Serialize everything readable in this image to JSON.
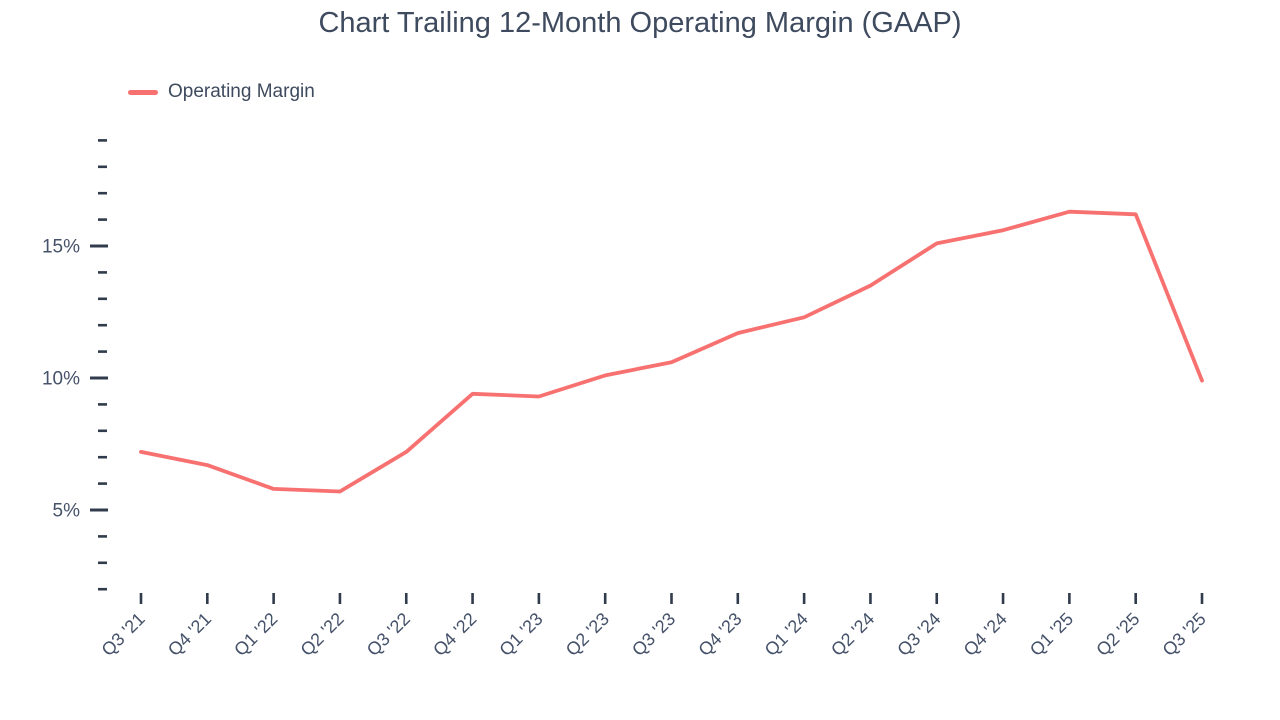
{
  "title": "Chart Trailing 12-Month Operating Margin (GAAP)",
  "legend": {
    "items": [
      {
        "label": "Operating Margin",
        "color": "#f87171"
      }
    ],
    "position": "top-left"
  },
  "colors": {
    "line": "#f87171",
    "title_text": "#3e4a5e",
    "axis_label_text": "#46526a",
    "tick_mark": "#303b4c",
    "background": "#ffffff"
  },
  "chart_data": {
    "type": "line",
    "title": "Chart Trailing 12-Month Operating Margin (GAAP)",
    "x": [
      "Q3 '21",
      "Q4 '21",
      "Q1 '22",
      "Q2 '22",
      "Q3 '22",
      "Q4 '22",
      "Q1 '23",
      "Q2 '23",
      "Q3 '23",
      "Q4 '23",
      "Q1 '24",
      "Q2 '24",
      "Q3 '24",
      "Q4 '24",
      "Q1 '25",
      "Q2 '25",
      "Q3 '25"
    ],
    "series": [
      {
        "name": "Operating Margin",
        "color": "#f87171",
        "values": [
          7.2,
          6.7,
          5.8,
          5.7,
          7.2,
          9.4,
          9.3,
          10.1,
          10.6,
          11.7,
          12.3,
          13.5,
          15.1,
          15.6,
          16.3,
          16.2,
          9.9
        ]
      }
    ],
    "xlabel": "",
    "ylabel": "",
    "y_axis": {
      "min": 2,
      "max": 19,
      "minor_step": 1,
      "major_ticks": [
        5,
        10,
        15
      ],
      "tick_label_format": "percent"
    },
    "x_tick_label_rotation": -45,
    "grid": false,
    "legend_position": "top-left"
  }
}
